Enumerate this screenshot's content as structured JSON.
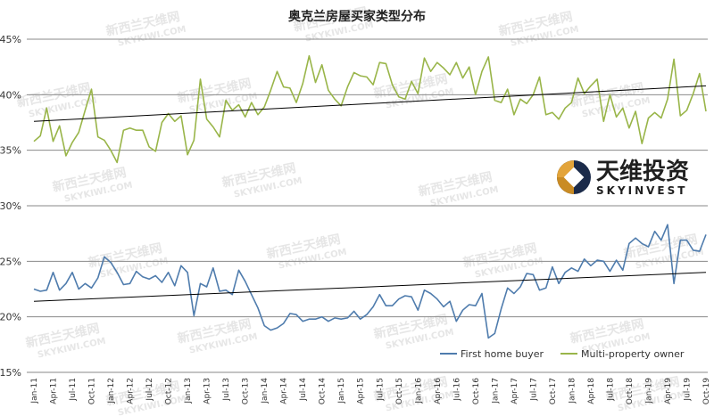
{
  "chart_data": {
    "type": "line",
    "title": "奥克兰房屋买家类型分布",
    "y_ticks": [
      "15%",
      "20%",
      "25%",
      "30%",
      "35%",
      "40%",
      "45%"
    ],
    "ylim": [
      15,
      45
    ],
    "x_tick_labels": [
      "Jan-11",
      "Apr-11",
      "Jul-11",
      "Oct-11",
      "Jan-12",
      "Apr-12",
      "Jul-12",
      "Oct-12",
      "Jan-13",
      "Apr-13",
      "Jul-13",
      "Oct-13",
      "Jan-14",
      "Apr-14",
      "Jul-14",
      "Oct-14",
      "Jan-15",
      "Apr-15",
      "Jul-15",
      "Oct-15",
      "Jan-16",
      "Apr-16",
      "Jul-16",
      "Oct-16",
      "Jan-17",
      "Apr-17",
      "Jul-17",
      "Oct-17",
      "Jan-18",
      "Apr-18",
      "Jul-18",
      "Oct-18",
      "Jan-19",
      "Apr-19",
      "Jul-19",
      "Oct-19"
    ],
    "grid": "horizontal",
    "legend_position": "bottom-center",
    "series": [
      {
        "name": "First home buyer",
        "color": "#4f7cad",
        "values": [
          22.5,
          22.3,
          22.4,
          24.0,
          22.4,
          23.0,
          24.0,
          22.5,
          23.0,
          22.6,
          23.5,
          25.4,
          24.9,
          24.0,
          22.9,
          23.0,
          24.1,
          23.6,
          23.4,
          23.7,
          23.1,
          24.0,
          22.8,
          24.6,
          24.0,
          20.1,
          23.0,
          22.7,
          24.4,
          22.3,
          22.4,
          22.0,
          24.2,
          23.2,
          22.0,
          20.8,
          19.2,
          18.8,
          19.0,
          19.4,
          20.3,
          20.2,
          19.6,
          19.8,
          19.8,
          20.0,
          19.6,
          19.9,
          19.8,
          19.9,
          20.5,
          19.8,
          20.2,
          20.9,
          22.0,
          21.0,
          21.0,
          21.6,
          21.9,
          21.8,
          20.6,
          22.4,
          22.1,
          21.6,
          20.9,
          21.4,
          19.6,
          20.6,
          21.1,
          21.0,
          22.1,
          18.1,
          18.5,
          20.7,
          22.6,
          22.1,
          22.7,
          23.9,
          23.8,
          22.4,
          22.6,
          24.5,
          23.0,
          24.0,
          24.4,
          24.1,
          25.2,
          24.6,
          25.1,
          25.0,
          24.1,
          25.1,
          24.2,
          26.6,
          27.1,
          26.6,
          26.3,
          27.7,
          26.9,
          28.3,
          23.0,
          26.9,
          26.9,
          26.0,
          25.9,
          27.4
        ],
        "trend": [
          21.4,
          24.0
        ]
      },
      {
        "name": "Multi-property owner",
        "color": "#99b549",
        "values": [
          35.8,
          36.3,
          38.8,
          35.8,
          37.2,
          34.5,
          35.7,
          36.6,
          38.6,
          40.5,
          36.2,
          35.9,
          35.0,
          33.9,
          36.8,
          37.0,
          36.8,
          36.8,
          35.3,
          34.9,
          37.5,
          38.3,
          37.6,
          38.1,
          34.6,
          35.9,
          41.4,
          37.8,
          37.1,
          36.2,
          39.5,
          38.6,
          39.1,
          38.0,
          39.3,
          38.2,
          38.9,
          40.4,
          42.1,
          40.7,
          40.6,
          39.3,
          41.0,
          43.5,
          41.1,
          42.7,
          40.4,
          39.6,
          39.0,
          40.7,
          42.0,
          41.7,
          41.6,
          40.9,
          42.9,
          42.8,
          40.9,
          39.8,
          39.6,
          41.2,
          40.1,
          43.3,
          42.1,
          42.9,
          42.4,
          41.8,
          42.9,
          41.5,
          42.5,
          40.0,
          42.1,
          43.4,
          39.5,
          39.3,
          40.5,
          38.2,
          39.6,
          39.2,
          40.0,
          41.6,
          38.2,
          38.4,
          37.8,
          38.8,
          39.3,
          41.5,
          40.1,
          40.8,
          41.4,
          37.6,
          40.0,
          38.0,
          38.8,
          37.0,
          38.5,
          35.6,
          37.9,
          38.4,
          37.9,
          39.6,
          43.2,
          38.1,
          38.6,
          40.1,
          41.9,
          38.5
        ],
        "trend": [
          37.6,
          40.8
        ]
      }
    ]
  },
  "watermark": {
    "cn": "新西兰天维网",
    "en": "SKYKIWI.COM"
  },
  "logo": {
    "cn": "天维投资",
    "en": "SKYINVEST"
  }
}
